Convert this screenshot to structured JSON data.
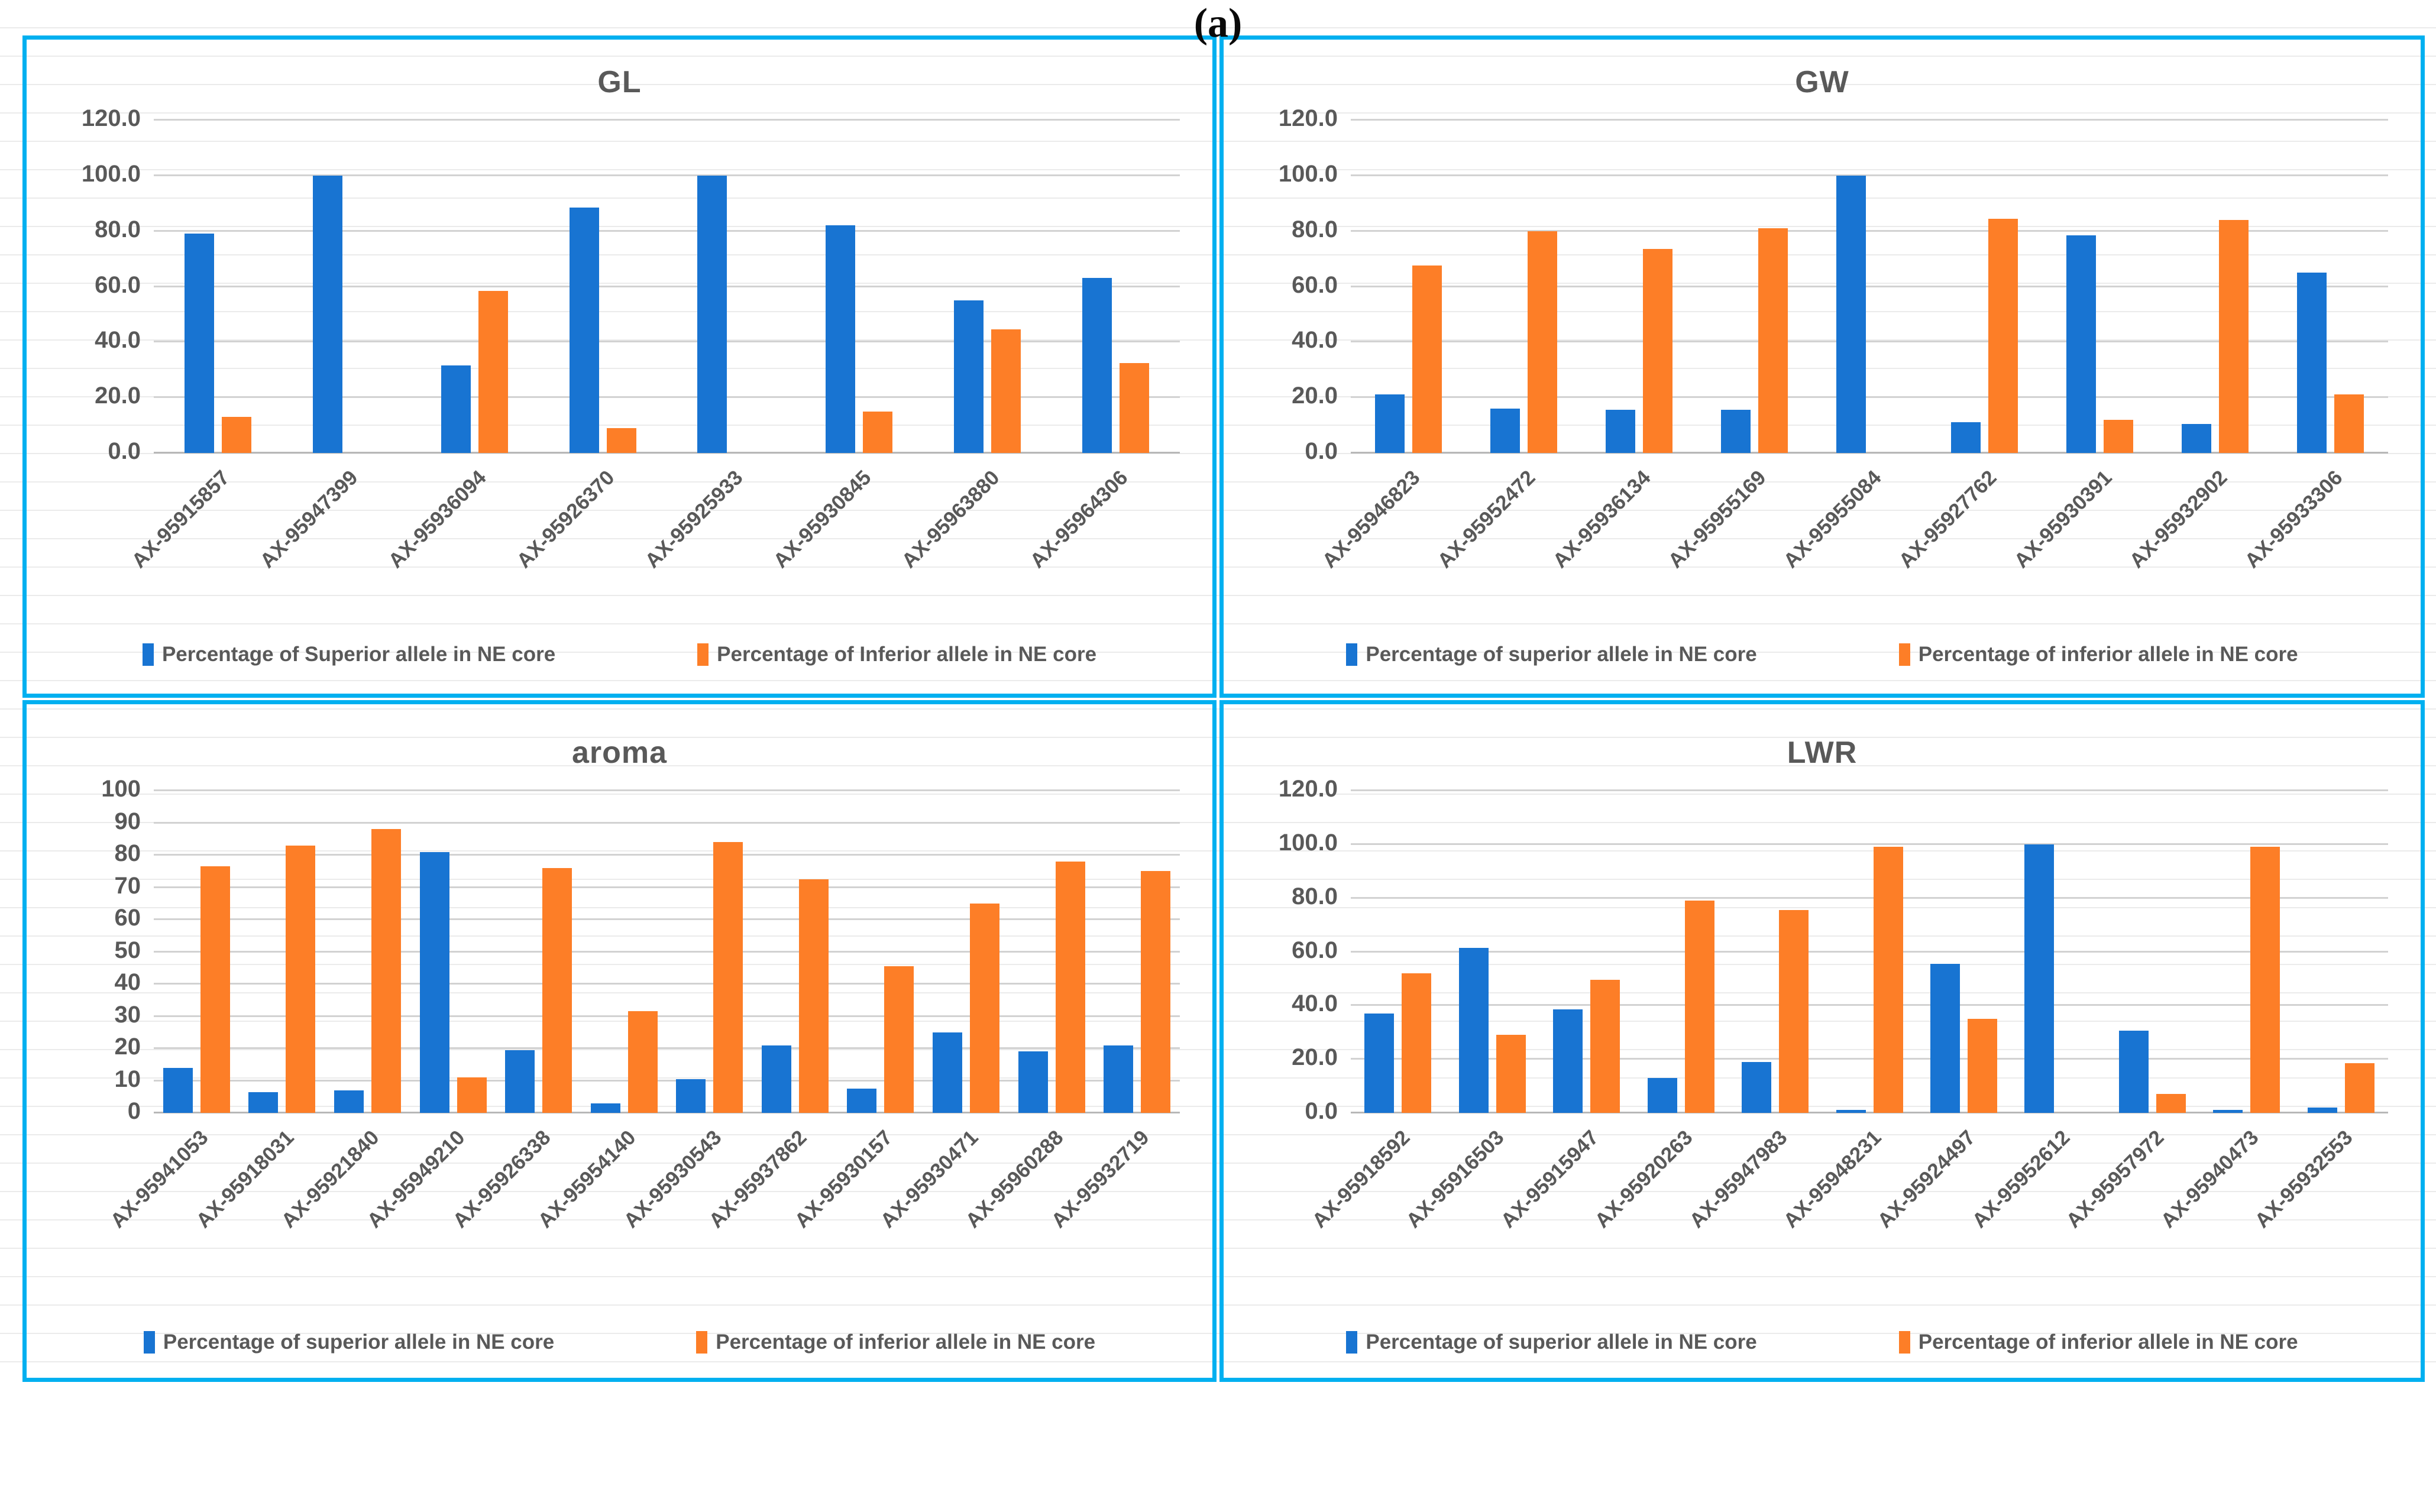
{
  "caption": "(a)",
  "colors": {
    "superior": "#1874D2",
    "inferior": "#FD7E27",
    "panel_border": "#00B0F0",
    "text": "#595959",
    "gridline": "#D2D2D2"
  },
  "chart_data": [
    {
      "type": "bar",
      "title": "GL",
      "ylim": [
        0,
        120
      ],
      "ytick_step": 20,
      "ytick_decimals": 1,
      "grid": true,
      "legend_position": "bottom",
      "categories": [
        "AX-95915857",
        "AX-95947399",
        "AX-95936094",
        "AX-95926370",
        "AX-95925933",
        "AX-95930845",
        "AX-95963880",
        "AX-95964306"
      ],
      "series": [
        {
          "name": "Percentage of Superior allele in NE core",
          "color_key": "superior",
          "values": [
            79,
            100,
            31.5,
            88.5,
            100,
            82,
            55,
            63
          ]
        },
        {
          "name": "Percentage of Inferior allele in NE core",
          "color_key": "inferior",
          "values": [
            13,
            0,
            58.5,
            9,
            0,
            15,
            44.5,
            32.5
          ]
        }
      ]
    },
    {
      "type": "bar",
      "title": "GW",
      "ylim": [
        0,
        120
      ],
      "ytick_step": 20,
      "ytick_decimals": 1,
      "grid": true,
      "legend_position": "bottom",
      "categories": [
        "AX-95946823",
        "AX-95952472",
        "AX-95936134",
        "AX-95955169",
        "AX-95955084",
        "AX-95927762",
        "AX-95930391",
        "AX-95932902",
        "AX-95933306"
      ],
      "series": [
        {
          "name": "Percentage of superior allele in NE core",
          "color_key": "superior",
          "values": [
            21,
            16,
            15.5,
            15.5,
            100,
            11,
            78.5,
            10.5,
            65
          ]
        },
        {
          "name": "Percentage of inferior allele in NE core",
          "color_key": "inferior",
          "values": [
            67.5,
            80,
            73.5,
            81,
            0,
            84.5,
            12,
            84,
            21
          ]
        }
      ]
    },
    {
      "type": "bar",
      "title": "aroma",
      "ylim": [
        0,
        100
      ],
      "ytick_step": 10,
      "ytick_decimals": 0,
      "grid": true,
      "legend_position": "bottom",
      "categories": [
        "AX-95941053",
        "AX-95918031",
        "AX-95921840",
        "AX-95949210",
        "AX-95926338",
        "AX-95954140",
        "AX-95930543",
        "AX-95937862",
        "AX-95930157",
        "AX-95930471",
        "AX-95960288",
        "AX-95932719"
      ],
      "series": [
        {
          "name": "Percentage of superior allele in NE core",
          "color_key": "superior",
          "values": [
            14,
            6.5,
            7,
            81,
            19.5,
            3,
            10.5,
            21,
            7.5,
            25,
            19,
            21
          ]
        },
        {
          "name": "Percentage of inferior allele in NE core",
          "color_key": "inferior",
          "values": [
            76.5,
            83,
            88,
            11,
            76,
            31.5,
            84,
            72.5,
            45.5,
            65,
            78,
            75
          ]
        }
      ]
    },
    {
      "type": "bar",
      "title": "LWR",
      "ylim": [
        0,
        120
      ],
      "ytick_step": 20,
      "ytick_decimals": 1,
      "grid": true,
      "legend_position": "bottom",
      "categories": [
        "AX-95918592",
        "AX-95916503",
        "AX-95915947",
        "AX-95920263",
        "AX-95947983",
        "AX-95948231",
        "AX-95924497",
        "AX-95952612",
        "AX-95957972",
        "AX-95940473",
        "AX-95932553"
      ],
      "series": [
        {
          "name": "Percentage of superior allele in NE core",
          "color_key": "superior",
          "values": [
            37,
            61.5,
            38.5,
            13,
            19,
            1,
            55.5,
            100,
            30.5,
            1,
            2
          ]
        },
        {
          "name": "Percentage of inferior allele in NE core",
          "color_key": "inferior",
          "values": [
            52,
            29,
            49.5,
            79,
            75.5,
            99,
            35,
            0,
            7,
            99,
            18.5
          ]
        }
      ]
    }
  ]
}
